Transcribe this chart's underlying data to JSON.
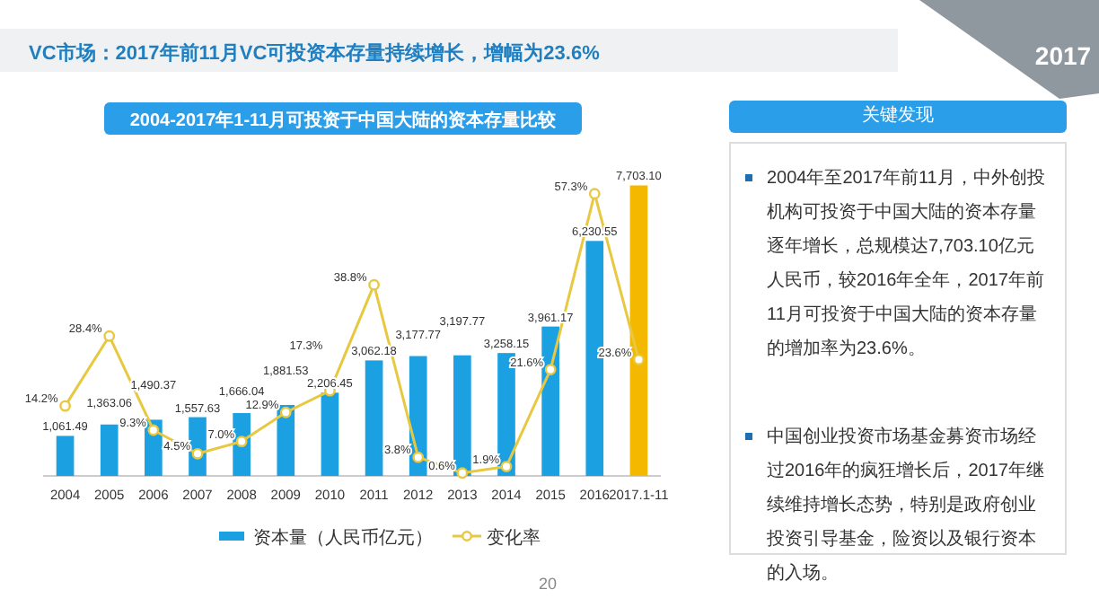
{
  "chart_data": [
    {
      "type": "bar",
      "title": "VC市场：2017年前11月VC可投资本存量持续增长，增幅为23.6%",
      "subtitle": "2004-2017年1-11月可投资于中国大陆的资本存量比较",
      "categories": [
        "2004",
        "2005",
        "2006",
        "2007",
        "2008",
        "2009",
        "2010",
        "2011",
        "2012",
        "2013",
        "2014",
        "2015",
        "2016",
        "2017.1-11"
      ],
      "series": [
        {
          "name": "资本量（人民币亿元）",
          "type": "bar",
          "color": "#1ba1e2",
          "colors": [
            "#1ba1e2",
            "#1ba1e2",
            "#1ba1e2",
            "#1ba1e2",
            "#1ba1e2",
            "#1ba1e2",
            "#1ba1e2",
            "#1ba1e2",
            "#1ba1e2",
            "#1ba1e2",
            "#1ba1e2",
            "#1ba1e2",
            "#1ba1e2",
            "#f5b800"
          ],
          "values": [
            1061.49,
            1363.06,
            1490.37,
            1557.63,
            1666.04,
            1881.53,
            2206.45,
            3062.18,
            3177.77,
            3197.77,
            3258.15,
            3961.17,
            6230.55,
            7703.1
          ],
          "value_labels": [
            "1,061.49",
            "1,363.06",
            "1,490.37",
            "1,557.63",
            "1,666.04",
            "1,881.53",
            "2,206.45",
            "3,062.18",
            "3,177.77",
            "3,197.77",
            "3,258.15",
            "3,961.17",
            "6,230.55",
            "7,703.10"
          ]
        },
        {
          "name": "变化率",
          "type": "line",
          "axis": "y2",
          "color": "#e8c840",
          "marker": "circle",
          "values": [
            14.2,
            28.4,
            9.3,
            4.5,
            7.0,
            12.9,
            17.3,
            38.8,
            3.8,
            0.6,
            1.9,
            21.6,
            57.3,
            23.6
          ],
          "value_labels": [
            "14.2%",
            "28.4%",
            "9.3%",
            "4.5%",
            "7.0%",
            "12.9%",
            "17.3%",
            "38.8%",
            "3.8%",
            "0.6%",
            "1.9%",
            "21.6%",
            "57.3%",
            "23.6%"
          ]
        }
      ],
      "legend": "bottom",
      "annotations": [
        "2017",
        "20"
      ]
    },
    {
      "type": "other",
      "title": "关键发现",
      "annotations": [
        "2004年至2017年前11月，中外创投机构可投资于中国大陆的资本存量逐年增长，总规模达7,703.10亿元人民币，较2016年全年，2017年前11月可投资于中国大陆的资本存量的增加率为23.6%。",
        "中国创业投资市场基金募资市场经过2016年的疯狂增长后，2017年继续维持增长态势，特别是政府创业投资引导基金，险资以及银行资本的入场。"
      ]
    }
  ]
}
